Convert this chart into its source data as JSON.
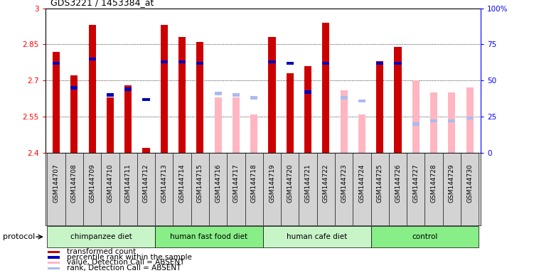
{
  "title": "GDS3221 / 1453384_at",
  "samples": [
    "GSM144707",
    "GSM144708",
    "GSM144709",
    "GSM144710",
    "GSM144711",
    "GSM144712",
    "GSM144713",
    "GSM144714",
    "GSM144715",
    "GSM144716",
    "GSM144717",
    "GSM144718",
    "GSM144719",
    "GSM144720",
    "GSM144721",
    "GSM144722",
    "GSM144723",
    "GSM144724",
    "GSM144725",
    "GSM144726",
    "GSM144727",
    "GSM144728",
    "GSM144729",
    "GSM144730"
  ],
  "transformed_count": [
    2.82,
    2.72,
    2.93,
    2.63,
    2.68,
    2.42,
    2.93,
    2.88,
    2.86,
    null,
    null,
    null,
    2.88,
    2.73,
    2.76,
    2.94,
    null,
    null,
    2.78,
    2.84,
    null,
    null,
    null,
    null
  ],
  "percentile_rank": [
    62,
    45,
    65,
    40,
    44,
    37,
    63,
    63,
    62,
    null,
    null,
    null,
    63,
    62,
    42,
    62,
    null,
    null,
    62,
    62,
    null,
    null,
    null,
    null
  ],
  "absent_value": [
    null,
    null,
    null,
    null,
    null,
    null,
    null,
    null,
    null,
    2.63,
    2.63,
    2.56,
    null,
    null,
    null,
    null,
    2.66,
    2.56,
    null,
    null,
    2.7,
    2.65,
    2.65,
    2.67
  ],
  "absent_rank": [
    null,
    null,
    null,
    null,
    null,
    null,
    null,
    null,
    null,
    41,
    40,
    38,
    null,
    null,
    null,
    null,
    38,
    36,
    null,
    null,
    20,
    22,
    22,
    24
  ],
  "groups": [
    {
      "label": "chimpanzee diet",
      "start": 0,
      "end": 5
    },
    {
      "label": "human fast food diet",
      "start": 6,
      "end": 11
    },
    {
      "label": "human cafe diet",
      "start": 12,
      "end": 17
    },
    {
      "label": "control",
      "start": 18,
      "end": 23
    }
  ],
  "group_colors": [
    "#c8f5c8",
    "#88ee88",
    "#c8f5c8",
    "#88ee88"
  ],
  "ymin": 2.4,
  "ymax": 3.0,
  "yticks": [
    2.4,
    2.55,
    2.7,
    2.85,
    3.0
  ],
  "ytick_labels": [
    "2.4",
    "2.55",
    "2.7",
    "2.85",
    "3"
  ],
  "y2ticks": [
    0,
    25,
    50,
    75,
    100
  ],
  "y2tick_labels": [
    "0",
    "25",
    "50",
    "75",
    "100%"
  ],
  "bar_color_present": "#cc0000",
  "bar_color_absent": "#ffb6c1",
  "rank_color_present": "#0000bb",
  "rank_color_absent": "#aabbee",
  "bar_width": 0.4
}
